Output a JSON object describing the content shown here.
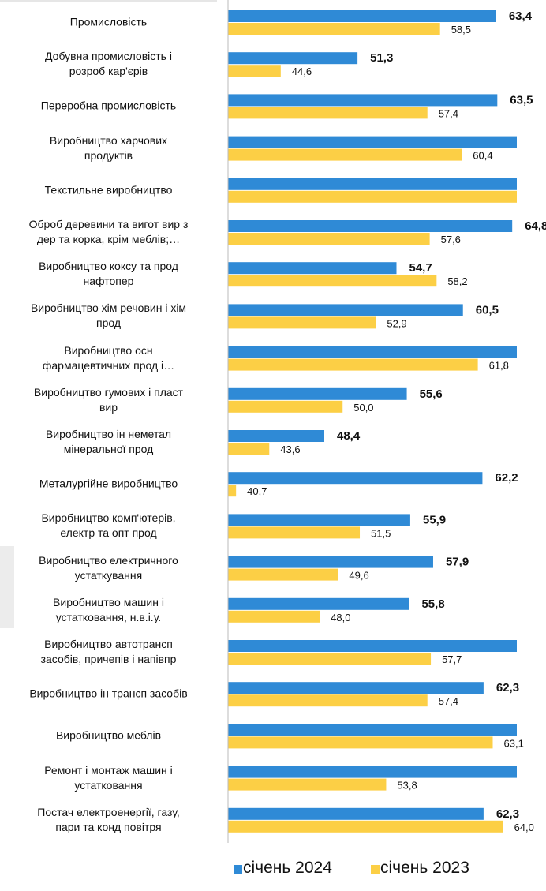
{
  "chart_data": {
    "type": "bar",
    "orientation": "horizontal",
    "categories": [
      "Промисловість",
      "Добувна промисловість і\nрозроб кар'єрів",
      "Переробна промисловість",
      "Виробництво харчових\nпродуктів",
      "Текстильне виробництво",
      "Оброб деревини та вигот вир з\nдер та корка, крім меблів;…",
      "Виробництво коксу та прод\nнафтопер",
      "Виробництво хім речовин і хім\nпрод",
      "Виробництво осн\nфармацевтичних прод і…",
      "Виробництво гумових і пласт\nвир",
      "Виробництво ін неметал\nмінеральної прод",
      "Металургійне виробництво",
      "Виробництво комп'ютерів,\nелектр та опт прод",
      "Виробництво електричного\nустаткування",
      "Виробництво машин і\nустатковання, н.в.і.у.",
      "Виробництво автотрансп\nзасобів, причепів і напівпр",
      "Виробництво ін трансп засобів",
      "Виробництво меблів",
      "Ремонт і монтаж машин і\nустатковання",
      "Постач електроенергії, газу,\nпари та конд повітря"
    ],
    "series": [
      {
        "name": "січень 2024",
        "color": "#2f8ad6",
        "values": [
          63.4,
          51.3,
          63.5,
          66,
          66,
          64.8,
          54.7,
          60.5,
          66,
          55.6,
          48.4,
          62.2,
          55.9,
          57.9,
          55.8,
          66,
          62.3,
          66,
          66,
          62.3
        ],
        "value_labels": [
          "63,4",
          "51,3",
          "63,5",
          null,
          null,
          "64,8",
          "54,7",
          "60,5",
          null,
          "55,6",
          "48,4",
          "62,2",
          "55,9",
          "57,9",
          "55,8",
          null,
          "62,3",
          null,
          null,
          "62,3"
        ]
      },
      {
        "name": "січень 2023",
        "color": "#fccf45",
        "values": [
          58.5,
          44.6,
          57.4,
          60.4,
          66,
          57.6,
          58.2,
          52.9,
          61.8,
          50.0,
          43.6,
          40.7,
          51.5,
          49.6,
          48.0,
          57.7,
          57.4,
          63.1,
          53.8,
          64.0
        ],
        "value_labels": [
          "58,5",
          "44,6",
          "57,4",
          "60,4",
          null,
          "57,6",
          "58,2",
          "52,9",
          "61,8",
          "50,0",
          "43,6",
          "40,7",
          "51,5",
          "49,6",
          "48,0",
          "57,7",
          "57,4",
          "63,1",
          "53,8",
          "64,0"
        ]
      }
    ],
    "xlim": [
      40,
      65.2
    ],
    "legend": "bottom"
  }
}
